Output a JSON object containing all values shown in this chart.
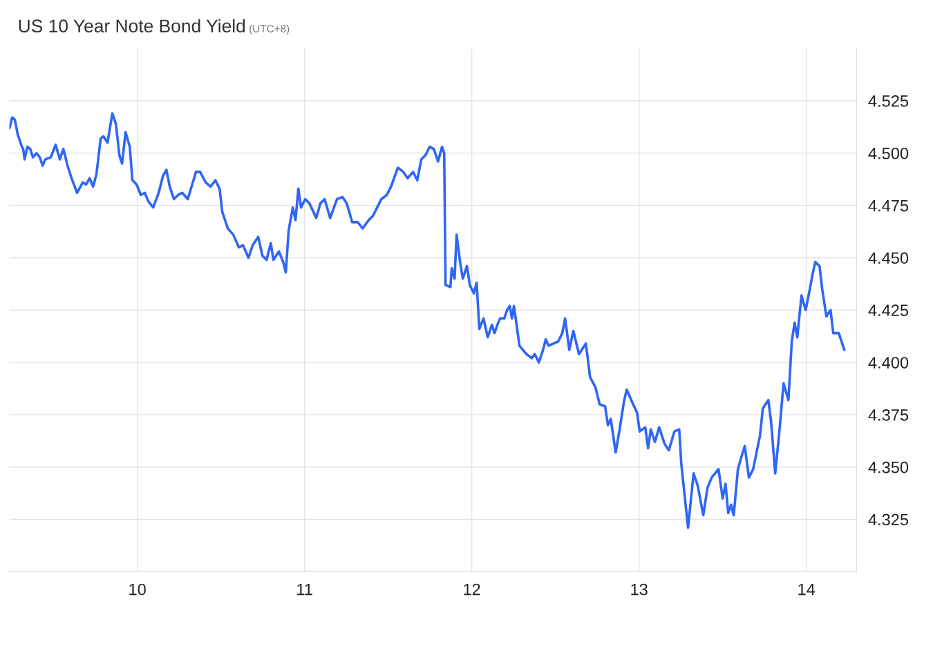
{
  "chart_data": {
    "type": "line",
    "title": "US 10 Year Note Bond Yield",
    "subtitle": "(UTC+8)",
    "x": [
      9.236,
      9.252,
      9.268,
      9.285,
      9.31,
      9.318,
      9.326,
      9.343,
      9.36,
      9.376,
      9.397,
      9.417,
      9.434,
      9.45,
      9.483,
      9.512,
      9.537,
      9.558,
      9.583,
      9.607,
      9.64,
      9.674,
      9.694,
      9.715,
      9.736,
      9.756,
      9.781,
      9.798,
      9.822,
      9.851,
      9.872,
      9.893,
      9.909,
      9.93,
      9.955,
      9.971,
      9.996,
      10.021,
      10.045,
      10.066,
      10.095,
      10.128,
      10.153,
      10.174,
      10.194,
      10.219,
      10.244,
      10.269,
      10.302,
      10.351,
      10.376,
      10.409,
      10.438,
      10.467,
      10.492,
      10.508,
      10.541,
      10.574,
      10.607,
      10.632,
      10.665,
      10.69,
      10.723,
      10.748,
      10.773,
      10.798,
      10.814,
      10.847,
      10.872,
      10.888,
      10.905,
      10.93,
      10.946,
      10.963,
      10.979,
      11.004,
      11.029,
      11.07,
      11.095,
      11.12,
      11.153,
      11.194,
      11.227,
      11.252,
      11.285,
      11.318,
      11.347,
      11.384,
      11.409,
      11.434,
      11.459,
      11.492,
      11.517,
      11.558,
      11.591,
      11.616,
      11.649,
      11.674,
      11.698,
      11.723,
      11.748,
      11.773,
      11.798,
      11.822,
      11.835,
      11.843,
      11.872,
      11.88,
      11.897,
      11.909,
      11.93,
      11.946,
      11.971,
      11.988,
      12.012,
      12.029,
      12.045,
      12.07,
      12.095,
      12.12,
      12.136,
      12.153,
      12.169,
      12.194,
      12.211,
      12.227,
      12.24,
      12.252,
      12.285,
      12.326,
      12.359,
      12.376,
      12.401,
      12.426,
      12.442,
      12.459,
      12.517,
      12.541,
      12.558,
      12.583,
      12.607,
      12.641,
      12.682,
      12.707,
      12.74,
      12.764,
      12.797,
      12.814,
      12.831,
      12.86,
      12.884,
      12.909,
      12.926,
      12.959,
      12.988,
      13.004,
      13.037,
      13.054,
      13.07,
      13.095,
      13.12,
      13.153,
      13.178,
      13.211,
      13.24,
      13.252,
      13.269,
      13.293,
      13.326,
      13.351,
      13.384,
      13.409,
      13.434,
      13.475,
      13.5,
      13.517,
      13.533,
      13.55,
      13.566,
      13.591,
      13.616,
      13.632,
      13.657,
      13.682,
      13.723,
      13.74,
      13.773,
      13.789,
      13.814,
      13.839,
      13.864,
      13.893,
      13.913,
      13.93,
      13.946,
      13.971,
      13.996,
      14.021,
      14.037,
      14.054,
      14.079,
      14.095,
      14.12,
      14.145,
      14.161,
      14.194,
      14.227
    ],
    "series": [
      {
        "color": "#2f66f5",
        "values": [
          4.512,
          4.517,
          4.516,
          4.509,
          4.503,
          4.502,
          4.497,
          4.503,
          4.502,
          4.498,
          4.5,
          4.498,
          4.494,
          4.497,
          4.498,
          4.504,
          4.497,
          4.502,
          4.494,
          4.488,
          4.481,
          4.486,
          4.485,
          4.488,
          4.484,
          4.49,
          4.507,
          4.508,
          4.505,
          4.519,
          4.514,
          4.499,
          4.495,
          4.51,
          4.503,
          4.487,
          4.485,
          4.48,
          4.481,
          4.477,
          4.474,
          4.481,
          4.489,
          4.492,
          4.484,
          4.478,
          4.48,
          4.481,
          4.478,
          4.491,
          4.491,
          4.486,
          4.484,
          4.487,
          4.483,
          4.472,
          4.464,
          4.461,
          4.455,
          4.456,
          4.45,
          4.456,
          4.46,
          4.451,
          4.449,
          4.457,
          4.449,
          4.453,
          4.448,
          4.443,
          4.463,
          4.474,
          4.468,
          4.483,
          4.474,
          4.478,
          4.476,
          4.469,
          4.476,
          4.478,
          4.469,
          4.478,
          4.479,
          4.476,
          4.467,
          4.467,
          4.464,
          4.468,
          4.47,
          4.474,
          4.478,
          4.48,
          4.484,
          4.493,
          4.491,
          4.488,
          4.491,
          4.487,
          4.497,
          4.499,
          4.503,
          4.502,
          4.496,
          4.503,
          4.5,
          4.437,
          4.436,
          4.445,
          4.44,
          4.461,
          4.448,
          4.44,
          4.446,
          4.437,
          4.433,
          4.438,
          4.416,
          4.421,
          4.412,
          4.418,
          4.414,
          4.418,
          4.421,
          4.421,
          4.425,
          4.427,
          4.421,
          4.427,
          4.408,
          4.404,
          4.402,
          4.404,
          4.4,
          4.406,
          4.411,
          4.408,
          4.41,
          4.414,
          4.421,
          4.406,
          4.415,
          4.404,
          4.409,
          4.393,
          4.388,
          4.38,
          4.379,
          4.37,
          4.373,
          4.357,
          4.368,
          4.381,
          4.387,
          4.381,
          4.376,
          4.367,
          4.369,
          4.359,
          4.368,
          4.362,
          4.369,
          4.361,
          4.358,
          4.367,
          4.368,
          4.352,
          4.339,
          4.321,
          4.347,
          4.341,
          4.327,
          4.34,
          4.345,
          4.349,
          4.335,
          4.342,
          4.328,
          4.332,
          4.327,
          4.349,
          4.356,
          4.36,
          4.345,
          4.349,
          4.365,
          4.378,
          4.382,
          4.372,
          4.347,
          4.367,
          4.39,
          4.382,
          4.41,
          4.419,
          4.412,
          4.432,
          4.425,
          4.435,
          4.442,
          4.448,
          4.446,
          4.435,
          4.422,
          4.425,
          4.414,
          4.414,
          4.406
        ]
      }
    ],
    "xlim": [
      9.235,
      14.3
    ],
    "ylim": [
      4.3,
      4.55
    ],
    "xticks": [
      10,
      11,
      12,
      13,
      14
    ],
    "yticks": [
      {
        "value": 4.325,
        "label": "4.325"
      },
      {
        "value": 4.35,
        "label": "4.350"
      },
      {
        "value": 4.375,
        "label": "4.375"
      },
      {
        "value": 4.4,
        "label": "4.400"
      },
      {
        "value": 4.425,
        "label": "4.425"
      },
      {
        "value": 4.45,
        "label": "4.450"
      },
      {
        "value": 4.475,
        "label": "4.475"
      },
      {
        "value": 4.5,
        "label": "4.500"
      },
      {
        "value": 4.525,
        "label": "4.525"
      }
    ],
    "grid": true,
    "marker": "none",
    "line_style": "solid"
  }
}
